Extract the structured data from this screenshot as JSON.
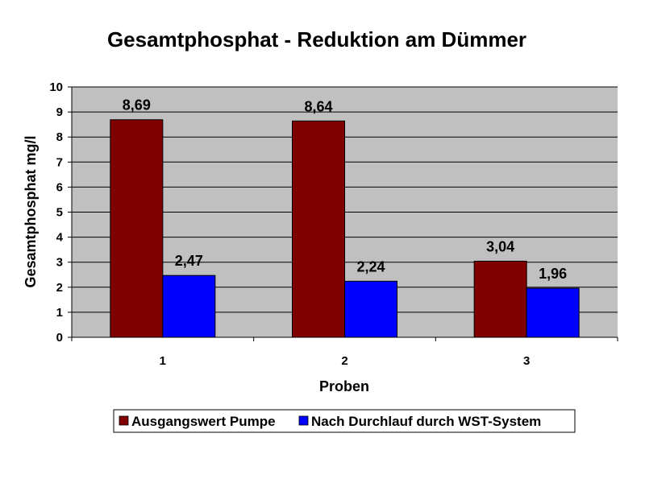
{
  "chart_data": {
    "type": "bar",
    "title": "Gesamtphosphat - Reduktion am Dümmer",
    "xlabel": "Proben",
    "ylabel": "Gesamtphosphat mg/l",
    "categories": [
      "1",
      "2",
      "3"
    ],
    "ylim": [
      0,
      10
    ],
    "yticks": [
      "0",
      "1",
      "2",
      "3",
      "4",
      "5",
      "6",
      "7",
      "8",
      "9",
      "10"
    ],
    "grid": true,
    "legend_position": "bottom",
    "plot_background": "#C0C0C0",
    "series": [
      {
        "name": "Ausgangswert Pumpe",
        "color": "#800000",
        "values": [
          8.69,
          8.64,
          3.04
        ],
        "labels": [
          "8,69",
          "8,64",
          "3,04"
        ]
      },
      {
        "name": "Nach Durchlauf durch WST-System",
        "color": "#0000FF",
        "values": [
          2.47,
          2.24,
          1.96
        ],
        "labels": [
          "2,47",
          "2,24",
          "1,96"
        ]
      }
    ]
  }
}
